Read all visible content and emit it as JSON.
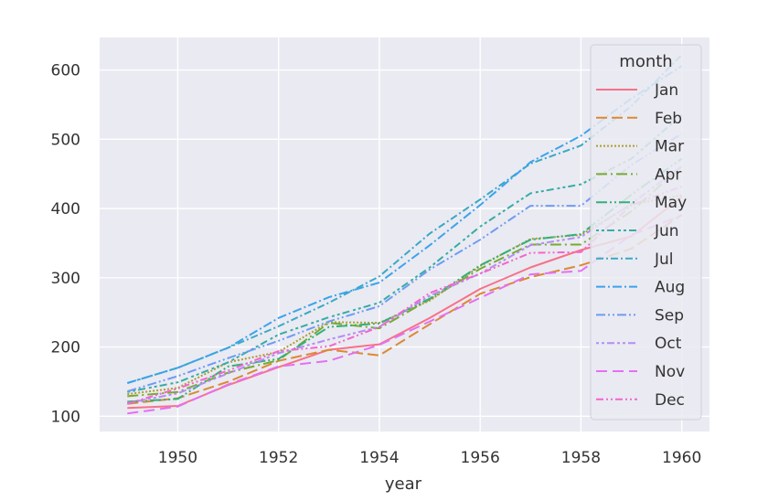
{
  "chart_data": {
    "type": "line",
    "xlabel": "year",
    "ylabel": "",
    "xlim": [
      1948.45,
      1960.55
    ],
    "ylim": [
      78,
      647
    ],
    "xticks": [
      1950,
      1952,
      1954,
      1956,
      1958,
      1960
    ],
    "yticks": [
      100,
      200,
      300,
      400,
      500,
      600
    ],
    "grid": true,
    "legend_title": "month",
    "legend_position": "top-right",
    "x": [
      1949,
      1950,
      1951,
      1952,
      1953,
      1954,
      1955,
      1956,
      1957,
      1958,
      1959,
      1960
    ],
    "series": [
      {
        "name": "Jan",
        "color": "#f77189",
        "dash": "",
        "values": [
          112,
          115,
          145,
          171,
          196,
          204,
          242,
          284,
          315,
          340,
          360,
          417
        ]
      },
      {
        "name": "Feb",
        "color": "#dc8932",
        "dash": "12 5",
        "values": [
          118,
          126,
          150,
          180,
          196,
          188,
          233,
          277,
          301,
          318,
          342,
          391
        ]
      },
      {
        "name": "Mar",
        "color": "#ae9d31",
        "dash": "2 2",
        "values": [
          132,
          141,
          178,
          193,
          236,
          235,
          267,
          317,
          356,
          362,
          406,
          419
        ]
      },
      {
        "name": "Apr",
        "color": "#77ab31",
        "dash": "12 4 2 4",
        "values": [
          129,
          135,
          163,
          181,
          235,
          227,
          269,
          313,
          348,
          348,
          396,
          461
        ]
      },
      {
        "name": "May",
        "color": "#33b07a",
        "dash": "12 3 2 3 2 3",
        "values": [
          121,
          125,
          172,
          183,
          229,
          234,
          270,
          318,
          355,
          363,
          420,
          472
        ]
      },
      {
        "name": "Jun",
        "color": "#36ada4",
        "dash": "3 3 3 3 8 4",
        "values": [
          135,
          149,
          178,
          218,
          243,
          264,
          315,
          374,
          422,
          435,
          472,
          535
        ]
      },
      {
        "name": "Jul",
        "color": "#38a9c5",
        "dash": "8 3 2 3",
        "values": [
          148,
          170,
          199,
          230,
          264,
          302,
          364,
          413,
          465,
          491,
          548,
          622
        ]
      },
      {
        "name": "Aug",
        "color": "#3ba3ec",
        "dash": "10 3 2 3",
        "values": [
          148,
          170,
          199,
          242,
          272,
          293,
          347,
          405,
          467,
          505,
          559,
          606
        ]
      },
      {
        "name": "Sep",
        "color": "#6e9bf4",
        "dash": "10 3 2 3 2 3",
        "values": [
          136,
          158,
          184,
          209,
          237,
          259,
          312,
          355,
          404,
          404,
          463,
          508
        ]
      },
      {
        "name": "Oct",
        "color": "#b48cf4",
        "dash": "3 3 3 3 8 3",
        "values": [
          119,
          133,
          162,
          191,
          211,
          229,
          274,
          306,
          347,
          359,
          407,
          461
        ]
      },
      {
        "name": "Nov",
        "color": "#e470f2",
        "dash": "12 6",
        "values": [
          104,
          114,
          146,
          172,
          180,
          203,
          237,
          271,
          305,
          310,
          362,
          390
        ]
      },
      {
        "name": "Dec",
        "color": "#f565cc",
        "dash": "8 3 2 3 2 3",
        "values": [
          118,
          140,
          166,
          194,
          201,
          229,
          278,
          306,
          336,
          337,
          405,
          432
        ]
      }
    ]
  },
  "colors": {
    "plot_background": "#eaeaf2",
    "grid": "#ffffff",
    "legend_background": "#eaeaf2",
    "legend_border": "#d0d0d8"
  }
}
